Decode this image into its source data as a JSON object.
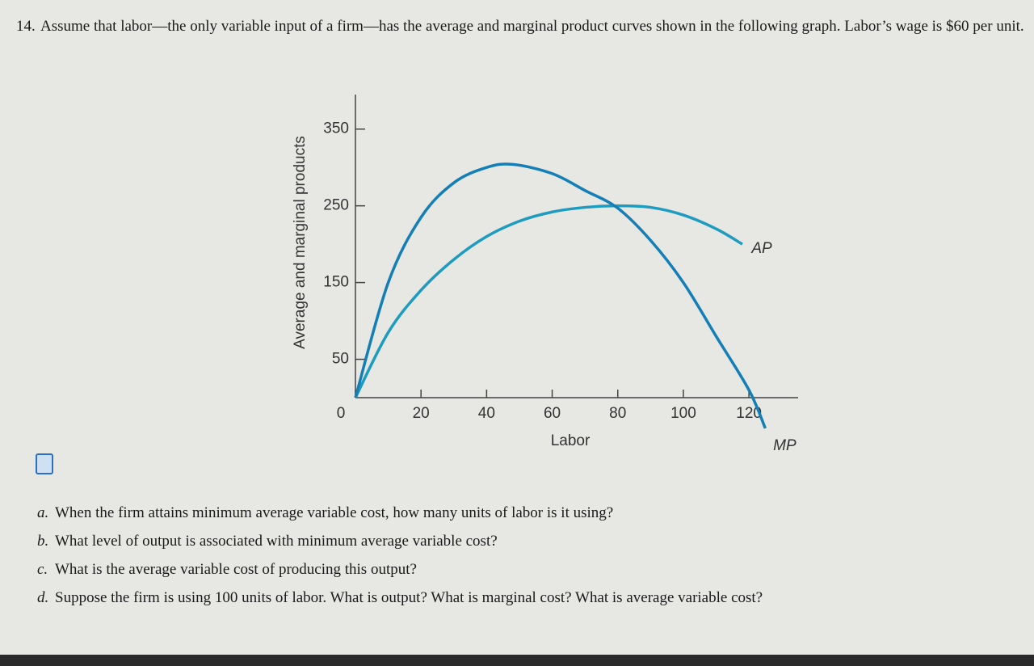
{
  "question": {
    "number": "14.",
    "text": "Assume that labor—the only variable input of a firm—has the average and marginal product curves shown in the following graph. Labor’s wage is $60 per unit."
  },
  "parts": [
    {
      "letter": "a.",
      "text": "When the firm attains minimum average variable cost, how many units of labor is it using?"
    },
    {
      "letter": "b.",
      "text": "What level of output is associated with minimum average variable cost?"
    },
    {
      "letter": "c.",
      "text": "What is the average variable cost of producing this output?"
    },
    {
      "letter": "d.",
      "text": "Suppose the firm is using 100 units of labor. What is output? What is marginal cost? What is average variable cost?"
    }
  ],
  "chart_data": {
    "type": "line",
    "x_label": "Labor",
    "y_label": "Average and marginal products",
    "xlim": [
      0,
      135
    ],
    "xticks": [
      0,
      20,
      40,
      60,
      80,
      100,
      120
    ],
    "ylim": [
      0,
      395
    ],
    "yticks": [
      50,
      150,
      250,
      350
    ],
    "series": [
      {
        "name": "AP",
        "color": "#1e9cc0",
        "x": [
          0,
          10,
          20,
          30,
          40,
          50,
          60,
          70,
          80,
          90,
          100,
          110,
          118
        ],
        "values": [
          0,
          85,
          140,
          180,
          210,
          230,
          242,
          248,
          250,
          248,
          238,
          220,
          200
        ]
      },
      {
        "name": "MP",
        "color": "#137fb6",
        "x": [
          0,
          10,
          20,
          30,
          40,
          48,
          60,
          70,
          80,
          90,
          100,
          110,
          120,
          125
        ],
        "values": [
          0,
          150,
          235,
          280,
          300,
          304,
          292,
          270,
          247,
          205,
          150,
          80,
          10,
          -40
        ]
      }
    ]
  }
}
